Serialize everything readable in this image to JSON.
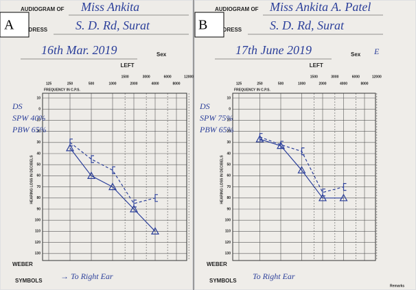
{
  "panels": [
    {
      "label": "A",
      "title_label": "AUDIOGRAM OF",
      "name": "Miss Ankita",
      "address_label": "ADDRESS",
      "address": "S. D. Rd, Surat",
      "date": "16th Mar. 2019",
      "sex_label": "Sex",
      "sex": null,
      "ear": "LEFT",
      "freq_ticks": [
        125,
        250,
        500,
        1000,
        2000,
        4000,
        8000
      ],
      "half_freq_ticks": [
        1500,
        3000,
        6000,
        12000
      ],
      "x_axis_label": "FREQUENCY IN C.P.S.",
      "y_axis_label": "HEARING LOSS IN DECIBELS",
      "db_ticks": [
        {
          "value": -10,
          "label": "10"
        },
        0,
        10,
        20,
        30,
        40,
        50,
        60,
        70,
        80,
        90,
        100,
        110,
        120,
        130
      ],
      "notes": [
        "DS",
        "SPW 40%",
        "PBW 65%"
      ],
      "weber": "WEBER",
      "symbols_label": "SYMBOLS",
      "symbols_note": "→ To Right Ear",
      "remarks": null,
      "plot": {
        "x": [
          250,
          500,
          1000,
          2000,
          4000
        ],
        "triangle": [
          35,
          60,
          70,
          90,
          110
        ],
        "bracket": [
          30,
          45,
          55,
          85,
          80
        ]
      }
    },
    {
      "label": "B",
      "title_label": "AUDIOGRAM OF",
      "name": "Miss Ankita A. Patel",
      "address_label": "ADDRESS",
      "address": "S. D. Rd, Surat",
      "date": "17th June 2019",
      "sex_label": "Sex",
      "sex": "E",
      "ear": "LEFT",
      "freq_ticks": [
        125,
        250,
        500,
        1000,
        2000,
        4000,
        8000
      ],
      "half_freq_ticks": [
        1500,
        3000,
        6000,
        12000
      ],
      "x_axis_label": "FREQUENCY IN C.P.S.",
      "y_axis_label": "HEARING LOSS IN DECIBELS",
      "db_ticks": [
        {
          "value": -10,
          "label": "10"
        },
        0,
        10,
        20,
        30,
        40,
        50,
        60,
        70,
        80,
        90,
        100,
        110,
        120,
        130
      ],
      "notes": [
        "DS",
        "SPW 75%",
        "PBW 65%"
      ],
      "weber": "WEBER",
      "symbols_label": "SYMBOLS",
      "symbols_note": "To Right Ear",
      "remarks": "Remarks",
      "plot": {
        "x": [
          250,
          500,
          1000,
          2000,
          4000
        ],
        "triangle": [
          27,
          33,
          55,
          80,
          80
        ],
        "bracket": [
          25,
          32,
          38,
          75,
          70
        ]
      }
    }
  ]
}
